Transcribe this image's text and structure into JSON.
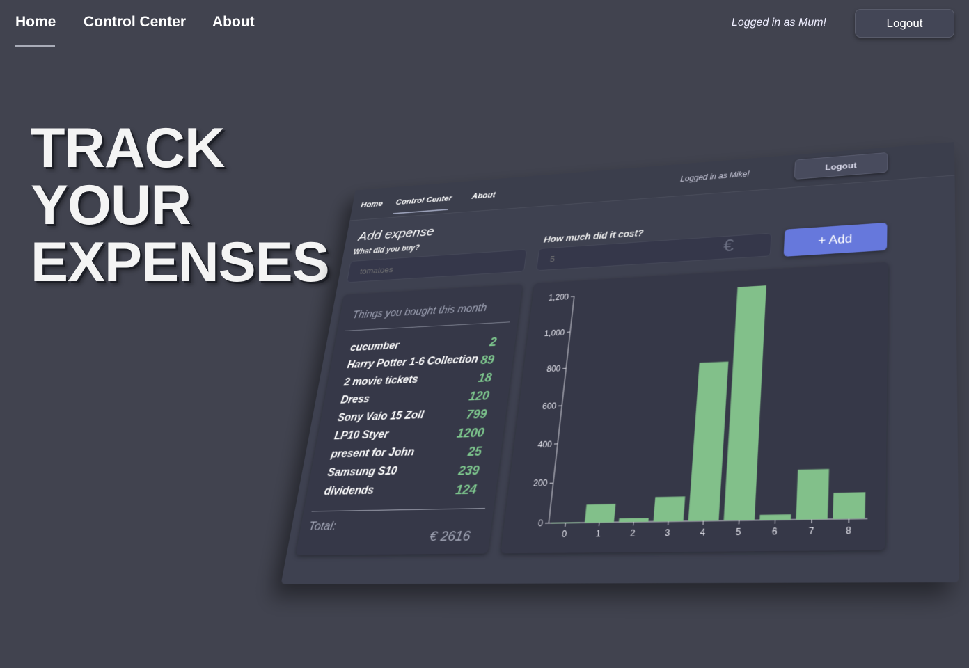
{
  "nav": {
    "home": "Home",
    "control_center": "Control Center",
    "about": "About",
    "logged_in": "Logged in as Mum!",
    "logout": "Logout"
  },
  "hero": {
    "line1": "TRACK",
    "line2": "YOUR",
    "line3": "EXPENSES"
  },
  "mockup": {
    "nav": {
      "home": "Home",
      "control_center": "Control Center",
      "about": "About",
      "logged_in": "Logged in as Mike!",
      "logout": "Logout"
    },
    "add_expense_title": "Add expense",
    "what_label": "What did you buy?",
    "what_placeholder": "tomatoes",
    "cost_label": "How much did it cost?",
    "cost_placeholder": "5",
    "euro_symbol": "€",
    "add_button": "+ Add",
    "list_title": "Things you bought this month",
    "items": [
      {
        "name": "cucumber",
        "value": "2"
      },
      {
        "name": "Harry Potter 1-6 Collection",
        "value": "89"
      },
      {
        "name": "2 movie tickets",
        "value": "18"
      },
      {
        "name": "Dress",
        "value": "120"
      },
      {
        "name": "Sony Vaio 15 Zoll",
        "value": "799"
      },
      {
        "name": "LP10 Styer",
        "value": "1200"
      },
      {
        "name": "present for John",
        "value": "25"
      },
      {
        "name": "Samsung S10",
        "value": "239"
      },
      {
        "name": "dividends",
        "value": "124"
      }
    ],
    "total_label": "Total:",
    "total_value": "€ 2616"
  },
  "chart_data": {
    "type": "bar",
    "categories": [
      "0",
      "1",
      "2",
      "3",
      "4",
      "5",
      "6",
      "7",
      "8"
    ],
    "values": [
      2,
      89,
      18,
      120,
      799,
      1200,
      25,
      239,
      124
    ],
    "yticks": [
      "0",
      "200",
      "400",
      "600",
      "800",
      "1,000",
      "1,200"
    ],
    "ylim": [
      0,
      1200
    ],
    "bar_color": "#82c08a",
    "title": "",
    "xlabel": "",
    "ylabel": ""
  }
}
